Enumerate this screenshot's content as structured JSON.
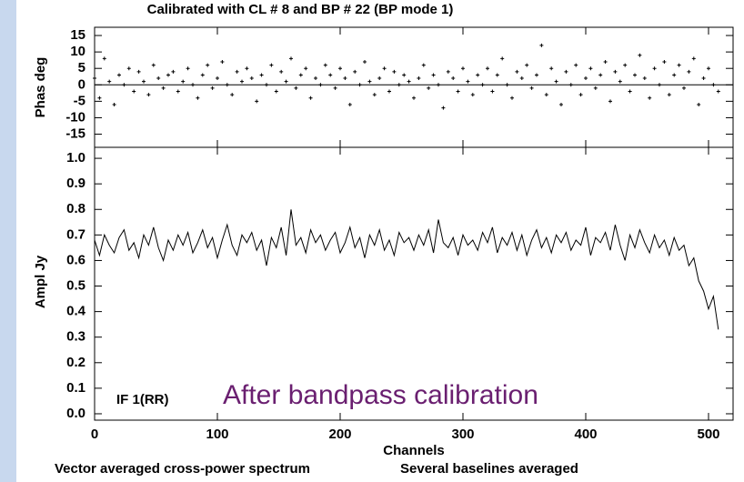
{
  "chart_data": [
    {
      "type": "scatter",
      "title": "Calibrated with CL # 8 and BP # 22 (BP mode 1)",
      "ylabel": "Phas deg",
      "xlim": [
        0,
        520
      ],
      "ylim": [
        -19,
        17.5
      ],
      "yticks": [
        -15,
        -10,
        -5,
        0,
        5,
        10,
        15
      ],
      "zero_line": true,
      "color": "#000000",
      "x": [
        0,
        4,
        8,
        12,
        16,
        20,
        24,
        28,
        32,
        36,
        40,
        44,
        48,
        52,
        56,
        60,
        64,
        68,
        72,
        76,
        80,
        84,
        88,
        92,
        96,
        100,
        104,
        108,
        112,
        116,
        120,
        124,
        128,
        132,
        136,
        140,
        144,
        148,
        152,
        156,
        160,
        164,
        168,
        172,
        176,
        180,
        184,
        188,
        192,
        196,
        200,
        204,
        208,
        212,
        216,
        220,
        224,
        228,
        232,
        236,
        240,
        244,
        248,
        252,
        256,
        260,
        264,
        268,
        272,
        276,
        280,
        284,
        288,
        292,
        296,
        300,
        304,
        308,
        312,
        316,
        320,
        324,
        328,
        332,
        336,
        340,
        344,
        348,
        352,
        356,
        360,
        364,
        368,
        372,
        376,
        380,
        384,
        388,
        392,
        396,
        400,
        404,
        408,
        412,
        416,
        420,
        424,
        428,
        432,
        436,
        440,
        444,
        448,
        452,
        456,
        460,
        464,
        468,
        472,
        476,
        480,
        484,
        488,
        492,
        496,
        500,
        504,
        508
      ],
      "values": [
        2,
        -4,
        8,
        1,
        -6,
        3,
        0,
        5,
        -2,
        4,
        1,
        -3,
        6,
        2,
        -1,
        3,
        4,
        -2,
        1,
        5,
        0,
        -4,
        3,
        6,
        -1,
        2,
        7,
        0,
        -3,
        4,
        1,
        5,
        2,
        -5,
        3,
        0,
        6,
        -2,
        4,
        1,
        8,
        -1,
        3,
        5,
        -4,
        2,
        0,
        6,
        3,
        -1,
        5,
        2,
        -6,
        4,
        0,
        7,
        1,
        -3,
        2,
        5,
        -2,
        4,
        0,
        3,
        1,
        -4,
        2,
        6,
        -1,
        3,
        0,
        -7,
        4,
        2,
        -2,
        5,
        1,
        -3,
        3,
        0,
        5,
        -2,
        3,
        8,
        0,
        -4,
        4,
        2,
        6,
        -1,
        3,
        12,
        -3,
        5,
        1,
        -6,
        4,
        0,
        6,
        -3,
        2,
        5,
        -1,
        3,
        7,
        -5,
        4,
        1,
        6,
        -2,
        3,
        9,
        2,
        -4,
        5,
        0,
        7,
        -3,
        3,
        6,
        -1,
        4,
        8,
        -6,
        2,
        5,
        0,
        -2
      ]
    },
    {
      "type": "line",
      "ylabel": "Ampl Jy",
      "xlabel": "Channels",
      "color": "#000000",
      "xlim": [
        0,
        520
      ],
      "xticks": [
        0,
        100,
        200,
        300,
        400,
        500
      ],
      "ylim": [
        -0.025,
        1.043
      ],
      "yticks": [
        {
          "value": 0,
          "label": "0.0"
        },
        0.1,
        0.2,
        0.3,
        0.4,
        0.5,
        0.6,
        0.7,
        0.8,
        0.9,
        {
          "value": 1,
          "label": "1.0"
        }
      ],
      "annotations": [
        "IF 1(RR)",
        "After bandpass calibration"
      ],
      "footer": [
        "Vector averaged cross-power spectrum",
        "Several baselines averaged"
      ],
      "x": [
        0,
        4,
        8,
        12,
        16,
        20,
        24,
        28,
        32,
        36,
        40,
        44,
        48,
        52,
        56,
        60,
        64,
        68,
        72,
        76,
        80,
        84,
        88,
        92,
        96,
        100,
        104,
        108,
        112,
        116,
        120,
        124,
        128,
        132,
        136,
        140,
        144,
        148,
        152,
        156,
        160,
        164,
        168,
        172,
        176,
        180,
        184,
        188,
        192,
        196,
        200,
        204,
        208,
        212,
        216,
        220,
        224,
        228,
        232,
        236,
        240,
        244,
        248,
        252,
        256,
        260,
        264,
        268,
        272,
        276,
        280,
        284,
        288,
        292,
        296,
        300,
        304,
        308,
        312,
        316,
        320,
        324,
        328,
        332,
        336,
        340,
        344,
        348,
        352,
        356,
        360,
        364,
        368,
        372,
        376,
        380,
        384,
        388,
        392,
        396,
        400,
        404,
        408,
        412,
        416,
        420,
        424,
        428,
        432,
        436,
        440,
        444,
        448,
        452,
        456,
        460,
        464,
        468,
        472,
        476,
        480,
        484,
        488,
        492,
        496,
        500,
        504,
        508
      ],
      "values": [
        0.68,
        0.62,
        0.7,
        0.66,
        0.63,
        0.69,
        0.72,
        0.64,
        0.67,
        0.61,
        0.7,
        0.66,
        0.73,
        0.65,
        0.6,
        0.68,
        0.64,
        0.7,
        0.66,
        0.71,
        0.63,
        0.67,
        0.72,
        0.65,
        0.69,
        0.61,
        0.68,
        0.74,
        0.66,
        0.62,
        0.7,
        0.67,
        0.71,
        0.64,
        0.68,
        0.58,
        0.69,
        0.65,
        0.73,
        0.62,
        0.8,
        0.66,
        0.69,
        0.63,
        0.72,
        0.67,
        0.7,
        0.64,
        0.68,
        0.71,
        0.63,
        0.67,
        0.73,
        0.65,
        0.69,
        0.61,
        0.7,
        0.66,
        0.72,
        0.64,
        0.68,
        0.62,
        0.71,
        0.67,
        0.69,
        0.64,
        0.7,
        0.66,
        0.72,
        0.63,
        0.76,
        0.67,
        0.65,
        0.69,
        0.62,
        0.7,
        0.66,
        0.68,
        0.64,
        0.71,
        0.67,
        0.73,
        0.63,
        0.69,
        0.66,
        0.71,
        0.64,
        0.7,
        0.62,
        0.68,
        0.72,
        0.65,
        0.69,
        0.63,
        0.7,
        0.67,
        0.71,
        0.64,
        0.68,
        0.66,
        0.73,
        0.62,
        0.69,
        0.67,
        0.71,
        0.64,
        0.74,
        0.66,
        0.6,
        0.7,
        0.65,
        0.72,
        0.67,
        0.63,
        0.7,
        0.65,
        0.68,
        0.62,
        0.69,
        0.64,
        0.66,
        0.58,
        0.61,
        0.52,
        0.48,
        0.41,
        0.46,
        0.33
      ]
    }
  ]
}
